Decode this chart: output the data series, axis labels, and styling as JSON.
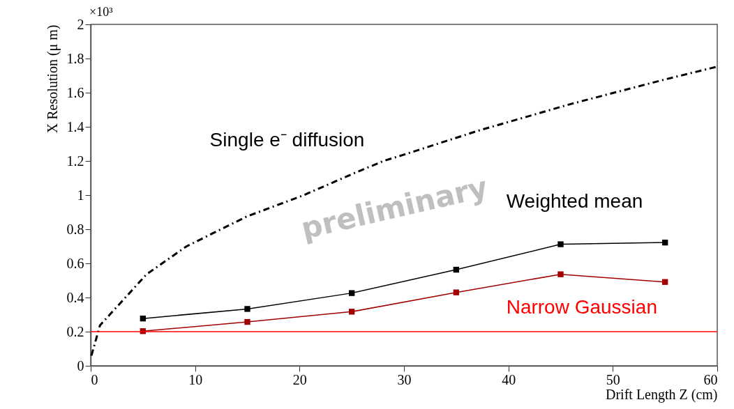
{
  "chart_data": {
    "type": "line",
    "xlabel": "Drift Length Z (cm)",
    "ylabel": "X Resolution (μ m)",
    "xlim": [
      0,
      60
    ],
    "xticks": [
      0,
      10,
      20,
      30,
      40,
      50,
      60
    ],
    "ylim": [
      0,
      2
    ],
    "yticks": [
      0,
      0.2,
      0.4,
      0.6,
      0.8,
      1,
      1.2,
      1.4,
      1.6,
      1.8,
      2
    ],
    "marker": "square",
    "series": [
      {
        "name": "Single e⁻ diffusion",
        "color": "#000000",
        "marker": "none",
        "line_style": "dashed",
        "x": [
          0.07,
          0.89,
          5.35,
          9.15,
          14.96,
          20.3,
          25.4,
          28.1,
          29.9,
          37.1,
          46.0,
          54.9,
          59.9
        ],
        "values": [
          0.06,
          0.237,
          0.536,
          0.699,
          0.875,
          0.997,
          1.133,
          1.201,
          1.235,
          1.377,
          1.534,
          1.676,
          1.751
        ]
      },
      {
        "name": "Weighted mean",
        "color": "#000000",
        "x": [
          5,
          15,
          25,
          35,
          45,
          55
        ],
        "values": [
          0.277,
          0.333,
          0.426,
          0.563,
          0.712,
          0.722
        ]
      },
      {
        "name": "Narrow Gaussian",
        "color": "#a00000",
        "x": [
          5,
          15,
          25,
          35,
          45,
          55
        ],
        "values": [
          0.203,
          0.257,
          0.317,
          0.43,
          0.536,
          0.491
        ]
      }
    ],
    "ref_lines": [
      {
        "axis": "y",
        "value": 0.2,
        "color": "#ff0000"
      }
    ],
    "annotations": [
      "preliminary",
      "×10³"
    ]
  }
}
